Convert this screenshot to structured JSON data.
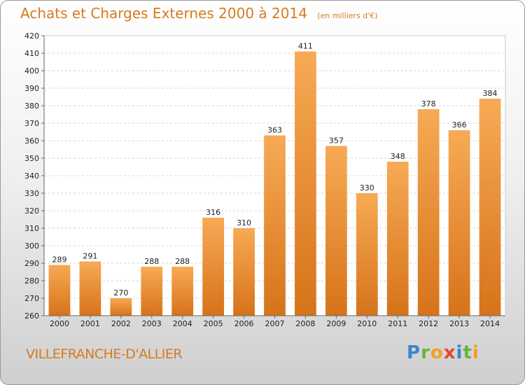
{
  "header": {
    "title": "Achats et Charges Externes 2000 à 2014",
    "subtitle": "(en milliers d'€)"
  },
  "footer": {
    "city": "VILLEFRANCHE-D'ALLIER",
    "logo": "Proxiti"
  },
  "colors": {
    "bar_top": "#f7aa55",
    "bar_bottom": "#d6731a",
    "title": "#d87a1e"
  },
  "chart_data": {
    "type": "bar",
    "categories": [
      "2000",
      "2001",
      "2002",
      "2003",
      "2004",
      "2005",
      "2006",
      "2007",
      "2008",
      "2009",
      "2010",
      "2011",
      "2012",
      "2013",
      "2014"
    ],
    "values": [
      289,
      291,
      270,
      288,
      288,
      316,
      310,
      363,
      411,
      357,
      330,
      348,
      378,
      366,
      384
    ],
    "title": "Achats et Charges Externes 2000 à 2014",
    "subtitle": "(en milliers d'€)",
    "xlabel": "",
    "ylabel": "",
    "ylim": [
      260,
      420
    ],
    "yticks": [
      260,
      270,
      280,
      290,
      300,
      310,
      320,
      330,
      340,
      350,
      360,
      370,
      380,
      390,
      400,
      410,
      420
    ],
    "grid": true,
    "data_labels": true
  }
}
